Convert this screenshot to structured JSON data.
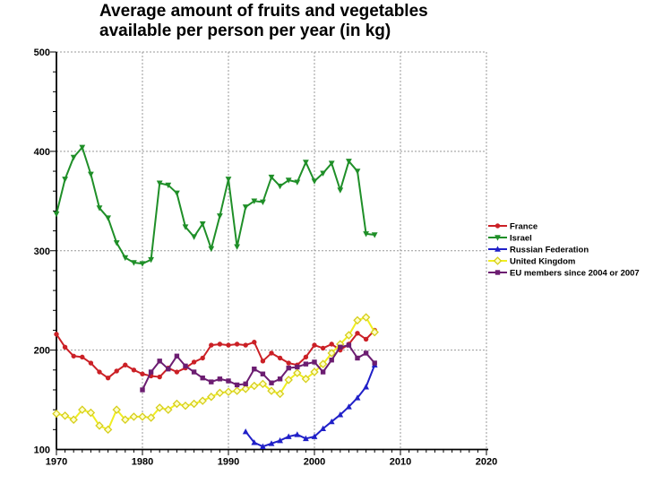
{
  "chart_data": {
    "type": "line",
    "title": "Average amount of fruits and vegetables available per person per year (in kg)",
    "title_lines": [
      "Average amount of fruits and vegetables",
      "available per person per year (in kg)"
    ],
    "xlabel": "",
    "ylabel": "",
    "xlim": [
      1970,
      2020
    ],
    "ylim": [
      100,
      500
    ],
    "x_ticks": [
      1970,
      1980,
      1990,
      2000,
      2010,
      2020
    ],
    "y_ticks": [
      100,
      200,
      300,
      400,
      500
    ],
    "x_minor_step": 1,
    "y_minor_step": 20,
    "grid": "dashed gray gridlines at major ticks",
    "legend_position": "right",
    "series": [
      {
        "name": "France",
        "color": "#cb2026",
        "marker": "circle",
        "start_year": 1970,
        "values": [
          216,
          203,
          194,
          193,
          187,
          178,
          172,
          179,
          185,
          180,
          176,
          174,
          173,
          182,
          178,
          182,
          188,
          192,
          205,
          206,
          205,
          206,
          205,
          208,
          189,
          197,
          192,
          187,
          185,
          193,
          205,
          202,
          206,
          200,
          206,
          217,
          211,
          220
        ]
      },
      {
        "name": "Israel",
        "color": "#1f8f28",
        "marker": "triangle-down",
        "start_year": 1970,
        "values": [
          337,
          372,
          394,
          404,
          377,
          343,
          333,
          308,
          293,
          288,
          287,
          291,
          368,
          366,
          358,
          324,
          314,
          327,
          302,
          335,
          372,
          304,
          344,
          350,
          349,
          374,
          365,
          371,
          369,
          389,
          370,
          378,
          388,
          361,
          390,
          380,
          317,
          316
        ]
      },
      {
        "name": "Russian Federation",
        "color": "#2020c8",
        "marker": "triangle-up",
        "start_year": 1992,
        "values": [
          118,
          107,
          103,
          106,
          109,
          113,
          115,
          111,
          113,
          121,
          128,
          135,
          143,
          152,
          163,
          185
        ]
      },
      {
        "name": "United Kingdom",
        "color": "#f0ee20",
        "marker": "diamond-open",
        "marker_stroke": "#d6ce1a",
        "marker_fill": "#ffffcc",
        "start_year": 1970,
        "values": [
          136,
          134,
          130,
          140,
          137,
          124,
          120,
          140,
          130,
          133,
          133,
          132,
          142,
          140,
          146,
          144,
          146,
          149,
          153,
          157,
          158,
          159,
          161,
          164,
          166,
          159,
          156,
          170,
          177,
          171,
          178,
          186,
          197,
          206,
          215,
          230,
          233,
          218
        ]
      },
      {
        "name": "EU members since 2004 or 2007",
        "color": "#6c1d71",
        "marker": "square",
        "start_year": 1980,
        "values": [
          160,
          178,
          189,
          181,
          194,
          184,
          178,
          172,
          168,
          171,
          169,
          165,
          166,
          181,
          176,
          167,
          171,
          182,
          183,
          186,
          188,
          178,
          190,
          203,
          205,
          192,
          197,
          187
        ]
      }
    ]
  },
  "style": {
    "grid_color": "#999999",
    "axis_color": "#000000",
    "background": "#ffffff"
  }
}
